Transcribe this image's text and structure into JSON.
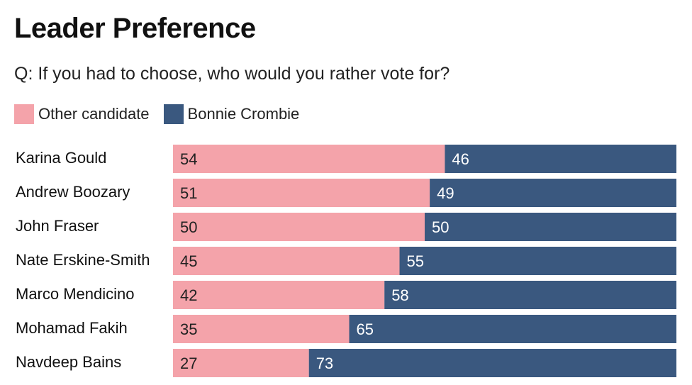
{
  "chart_data": {
    "type": "bar",
    "orientation": "horizontal",
    "stacked": true,
    "title": "Leader Preference",
    "subtitle": "Q: If you had to choose, who would you rather vote for?",
    "categories": [
      "Karina Gould",
      "Andrew Boozary",
      "John Fraser",
      "Nate Erskine-Smith",
      "Marco Mendicino",
      "Mohamad Fakih",
      "Navdeep Bains"
    ],
    "series": [
      {
        "name": "Other candidate",
        "color": "#f4a3aa",
        "values": [
          54,
          51,
          50,
          45,
          42,
          35,
          27
        ]
      },
      {
        "name": "Bonnie Crombie",
        "color": "#3a587f",
        "values": [
          46,
          49,
          50,
          55,
          58,
          65,
          73
        ]
      }
    ],
    "xlim": [
      0,
      100
    ],
    "grid": false,
    "legend_position": "top-left"
  }
}
